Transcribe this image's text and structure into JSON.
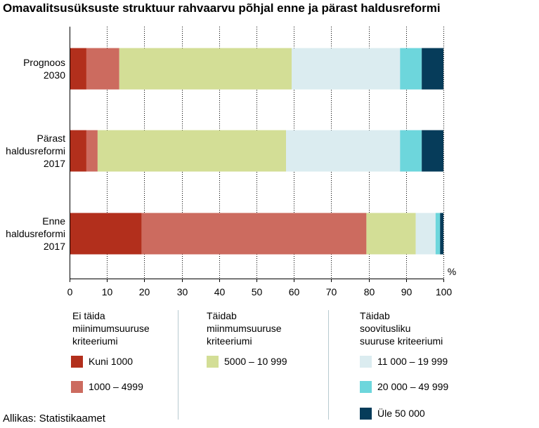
{
  "chart_data": {
    "type": "bar",
    "orientation": "horizontal",
    "stacked": true,
    "title": "Omavalitsusüksuste struktuur rahvaarvu põhjal enne ja pärast haldusreformi",
    "categories": [
      [
        "Prognoos",
        "2030"
      ],
      [
        "Pärast",
        "haldusreformi",
        "2017"
      ],
      [
        "Enne",
        "haldusreformi",
        "2017"
      ]
    ],
    "unit_label": "%",
    "xlim": [
      0,
      100
    ],
    "xticks": [
      "0",
      "10",
      "20",
      "30",
      "40",
      "50",
      "60",
      "70",
      "80",
      "90",
      "100"
    ],
    "grid": "vertical",
    "series": [
      {
        "name": "Kuni 1000",
        "color": "#b22f1c",
        "values": [
          4.5,
          4.5,
          19.3
        ]
      },
      {
        "name": "1000 – 4999",
        "color": "#cc6b5f",
        "values": [
          8.8,
          3.0,
          60.1
        ]
      },
      {
        "name": "5000  – 10 999",
        "color": "#d3de96",
        "values": [
          46.1,
          50.4,
          13.2
        ]
      },
      {
        "name": "11 000 – 19 999",
        "color": "#dbecf0",
        "values": [
          29.0,
          30.5,
          5.3
        ]
      },
      {
        "name": "20 000 – 49 999",
        "color": "#6dd6dc",
        "values": [
          5.8,
          5.8,
          1.2
        ]
      },
      {
        "name": "Üle 50 000",
        "color": "#063c5a",
        "values": [
          5.8,
          5.8,
          0.9
        ]
      }
    ],
    "legend_groups": [
      {
        "title": [
          "Ei täida",
          "miinimumsuuruse",
          "kriteeriumi"
        ],
        "items": [
          0,
          1
        ]
      },
      {
        "title": [
          "Täidab",
          "miinmumsuuruse",
          "kriteeriumi"
        ],
        "items": [
          2
        ]
      },
      {
        "title": [
          "Täidab",
          "soovitusliku",
          "suuruse kriteeriumi"
        ],
        "items": [
          3,
          4,
          5
        ]
      }
    ]
  },
  "source": "Allikas: Statistikaamet"
}
